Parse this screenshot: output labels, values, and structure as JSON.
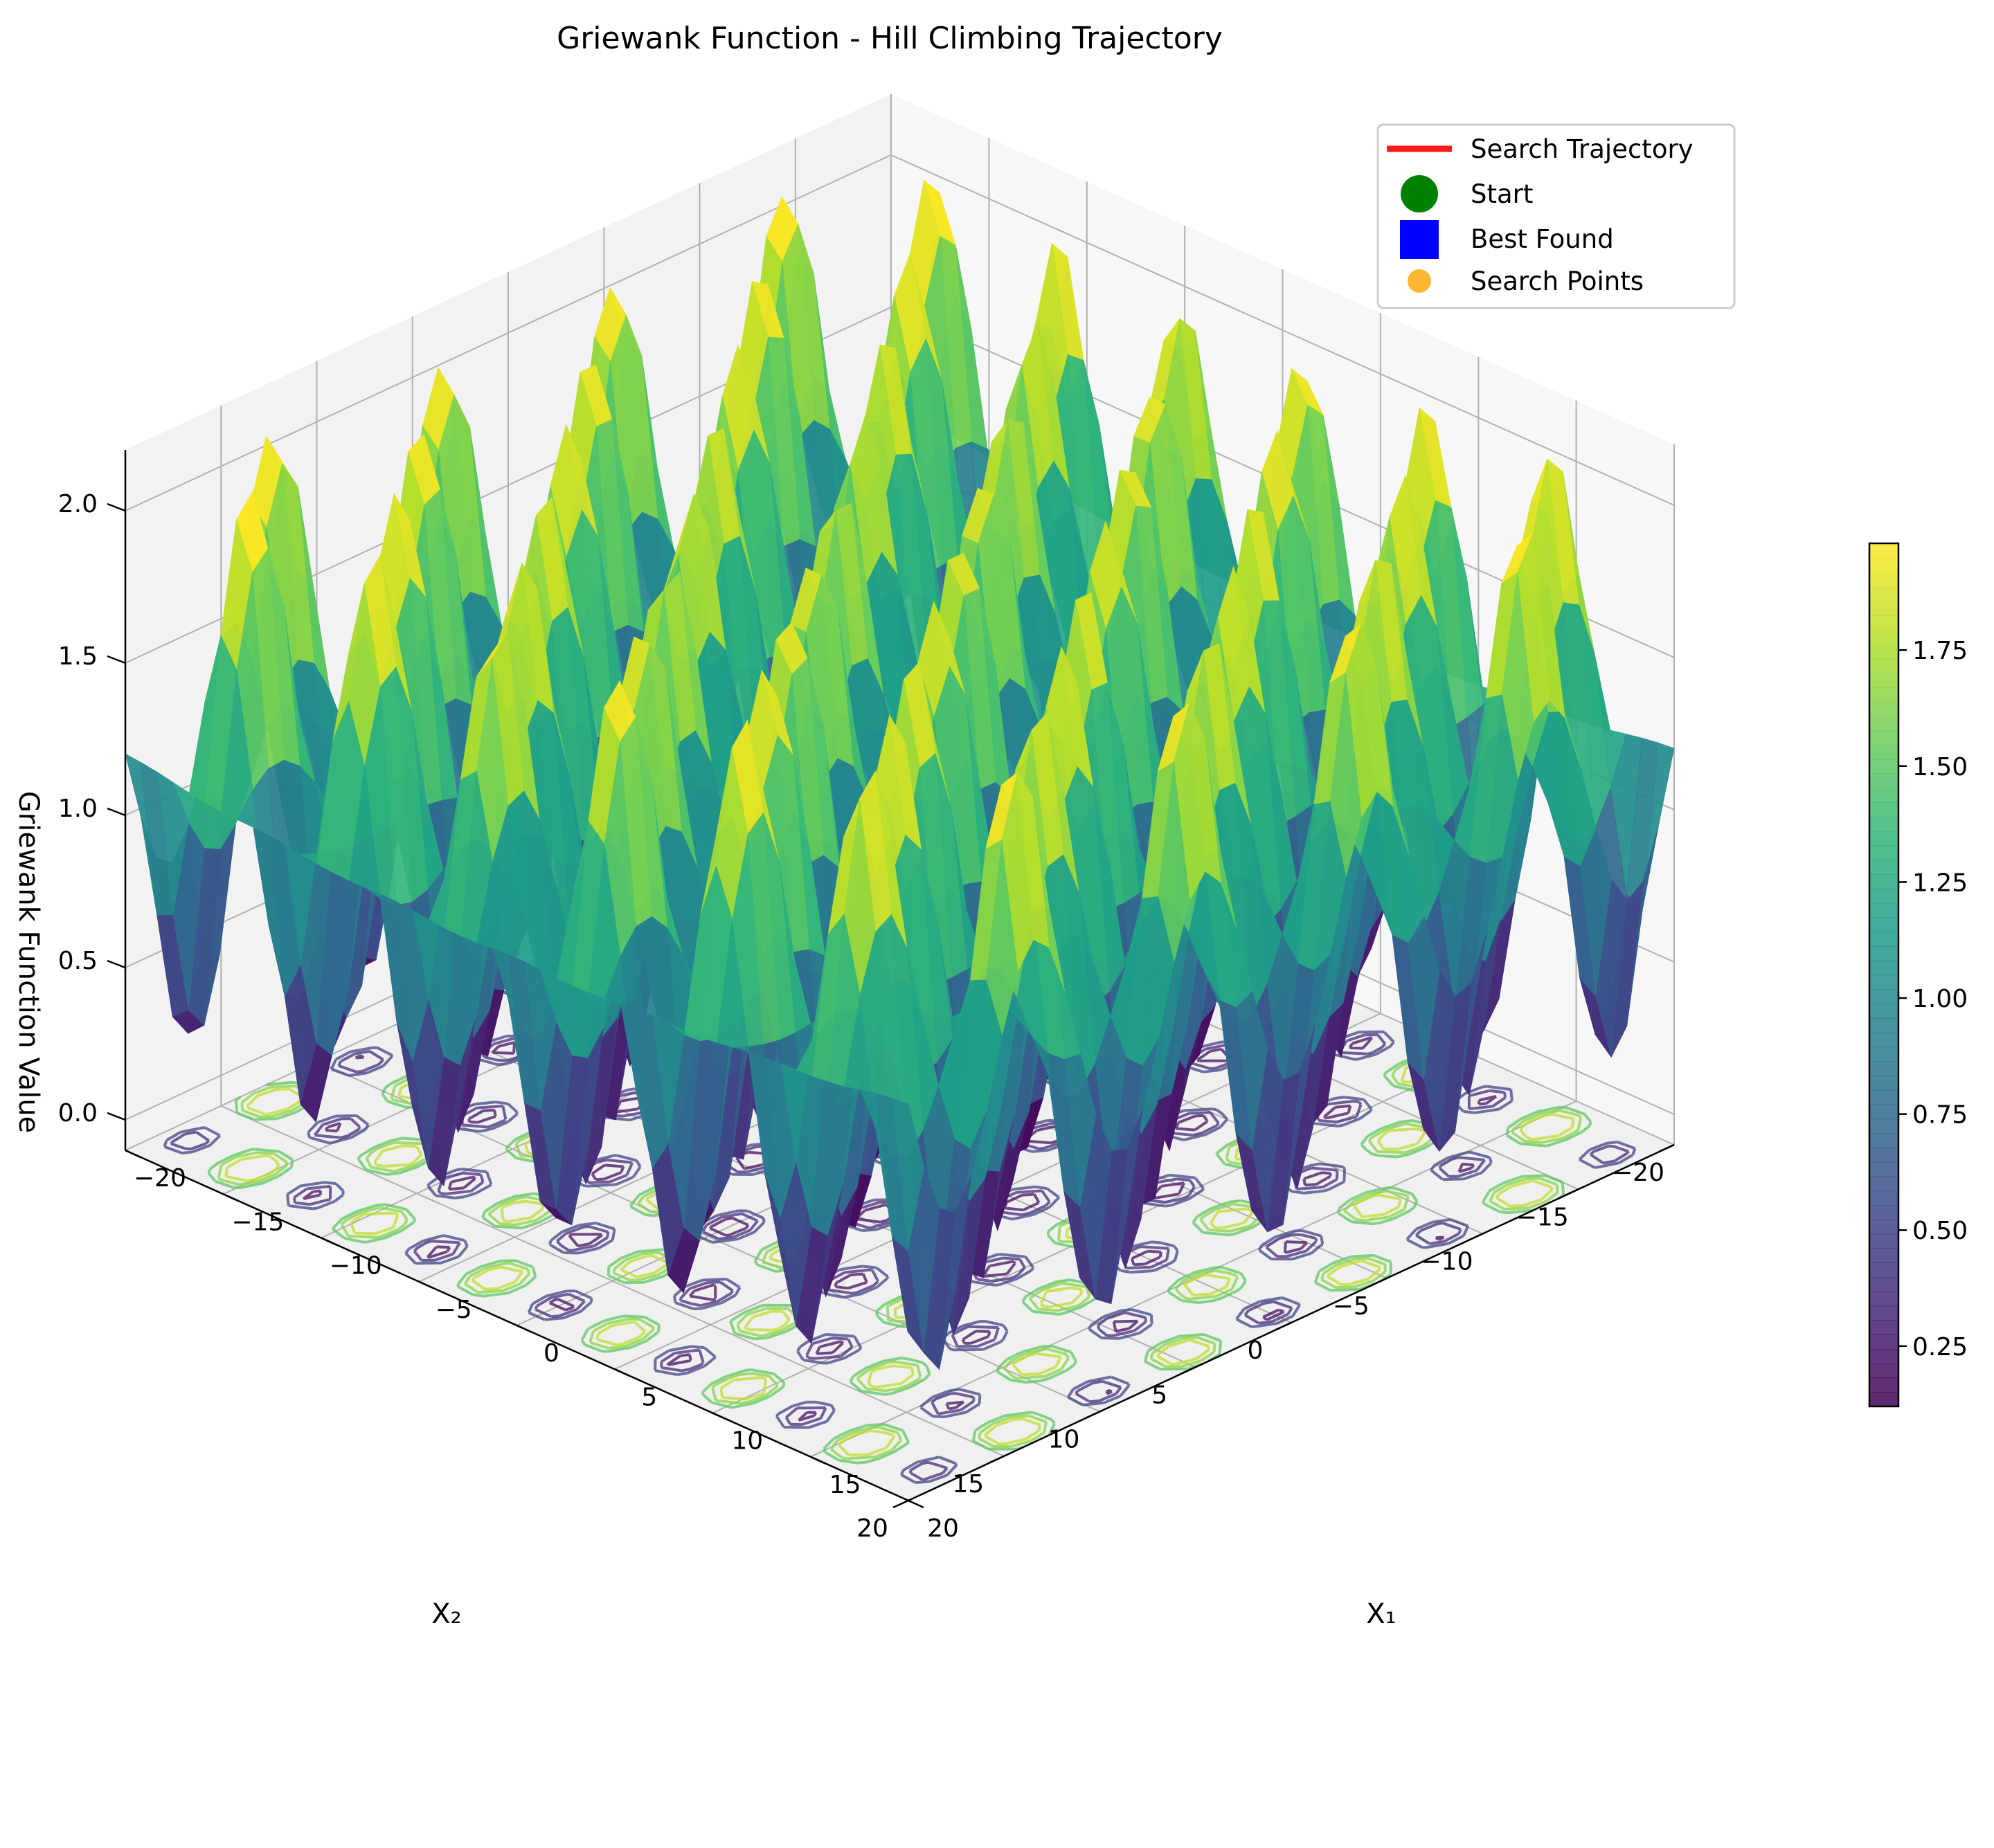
{
  "chart_data": {
    "type": "surface",
    "title": "Griewank Function - Hill Climbing Trajectory",
    "xlabel": "X₁",
    "ylabel": "X₂",
    "zlabel": "Griewank Function Value",
    "x_range": [
      -20,
      20
    ],
    "y_range": [
      -20,
      20
    ],
    "z_range": [
      -0.1,
      2.2
    ],
    "x_ticks": [
      {
        "value": -20,
        "label": "−20"
      },
      {
        "value": -15,
        "label": "−15"
      },
      {
        "value": -10,
        "label": "−10"
      },
      {
        "value": -5,
        "label": "−5"
      },
      {
        "value": 0,
        "label": "0"
      },
      {
        "value": 5,
        "label": "5"
      },
      {
        "value": 10,
        "label": "10"
      },
      {
        "value": 15,
        "label": "15"
      },
      {
        "value": 20,
        "label": "20"
      }
    ],
    "y_ticks": [
      {
        "value": -20,
        "label": "−20"
      },
      {
        "value": -15,
        "label": "−15"
      },
      {
        "value": -10,
        "label": "−10"
      },
      {
        "value": -5,
        "label": "−5"
      },
      {
        "value": 0,
        "label": "0"
      },
      {
        "value": 5,
        "label": "5"
      },
      {
        "value": 10,
        "label": "10"
      },
      {
        "value": 15,
        "label": "15"
      },
      {
        "value": 20,
        "label": "20"
      }
    ],
    "z_ticks": [
      {
        "value": 0.0,
        "label": "0.0"
      },
      {
        "value": 0.5,
        "label": "0.5"
      },
      {
        "value": 1.0,
        "label": "1.0"
      },
      {
        "value": 1.5,
        "label": "1.5"
      },
      {
        "value": 2.0,
        "label": "2.0"
      }
    ],
    "colorbar": {
      "colormap": "viridis",
      "range": [
        0.12,
        1.98
      ],
      "ticks": [
        {
          "value": 0.25,
          "label": "0.25"
        },
        {
          "value": 0.5,
          "label": "0.50"
        },
        {
          "value": 0.75,
          "label": "0.75"
        },
        {
          "value": 1.0,
          "label": "1.00"
        },
        {
          "value": 1.25,
          "label": "1.25"
        },
        {
          "value": 1.5,
          "label": "1.50"
        },
        {
          "value": 1.75,
          "label": "1.75"
        }
      ]
    },
    "surface": {
      "function": "griewank",
      "grid_points_per_axis": 50,
      "projected_contours": true
    },
    "legend": {
      "position": "top-right",
      "items": [
        {
          "label": "Search Trajectory",
          "marker": "line",
          "color": "#ff1a1a"
        },
        {
          "label": "Start",
          "marker": "circle",
          "color": "#008000"
        },
        {
          "label": "Best Found",
          "marker": "square",
          "color": "#0000ff"
        },
        {
          "label": "Search Points",
          "marker": "dot",
          "color": "#ffa500"
        }
      ]
    },
    "view": {
      "elev": 30,
      "azim": 45
    },
    "grid": true
  }
}
